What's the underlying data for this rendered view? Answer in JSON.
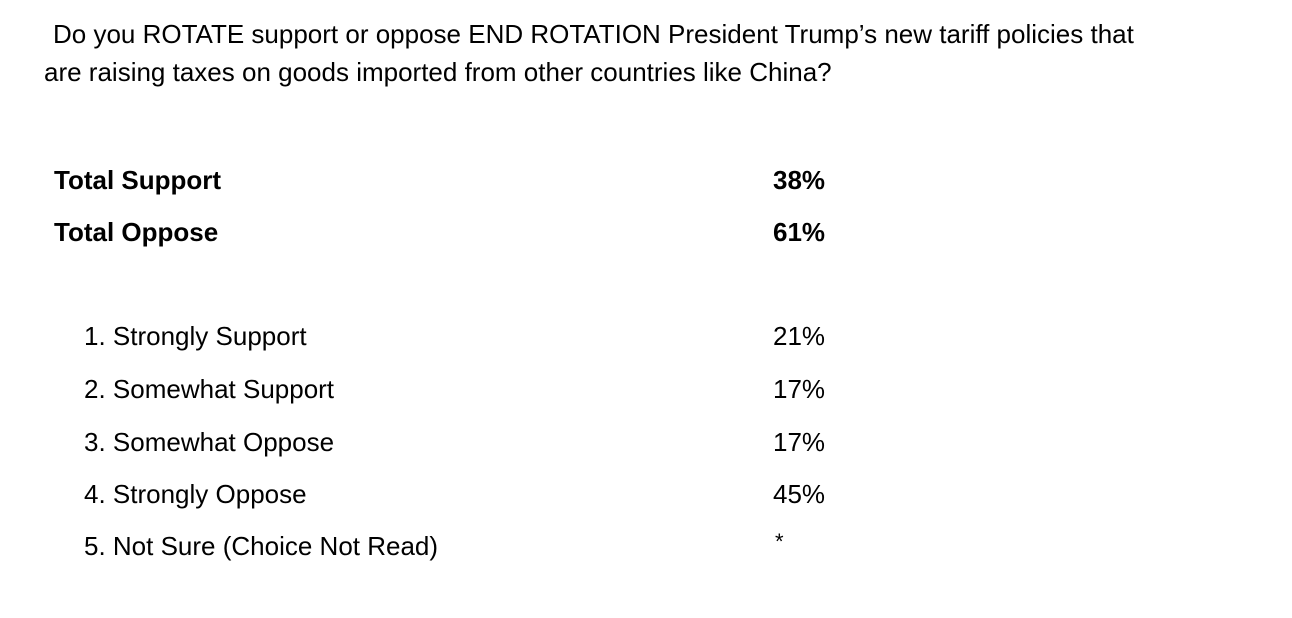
{
  "question": {
    "line1": "Do you ROTATE support or oppose END ROTATION President Trump’s new tariff policies that",
    "line2": "are raising taxes on goods imported from other countries like China?"
  },
  "totals": [
    {
      "label": "Total Support",
      "value": "38%"
    },
    {
      "label": "Total Oppose",
      "value": "61%"
    }
  ],
  "options": [
    {
      "label": "1. Strongly Support",
      "value": "21%"
    },
    {
      "label": "2. Somewhat Support",
      "value": "17%"
    },
    {
      "label": "3. Somewhat Oppose",
      "value": "17%"
    },
    {
      "label": "4. Strongly Oppose",
      "value": "45%"
    },
    {
      "label": "5. Not Sure (Choice Not Read)",
      "value": "*"
    }
  ]
}
